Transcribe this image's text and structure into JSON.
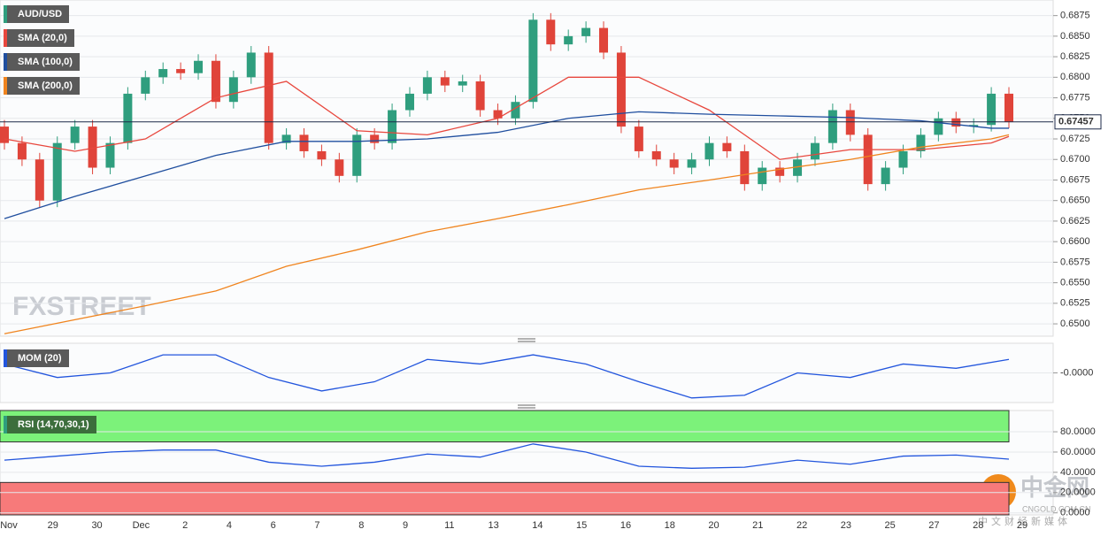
{
  "chart_data": [
    {
      "type": "candlestick",
      "title": "AUD/USD",
      "categories": [
        "Nov",
        "29",
        "30",
        "Dec",
        "2",
        "4",
        "6",
        "7",
        "8",
        "9",
        "11",
        "13",
        "14",
        "15",
        "16",
        "18",
        "20",
        "21",
        "22",
        "23",
        "25",
        "27",
        "28",
        "29"
      ],
      "open": [
        0.674,
        0.672,
        0.67,
        0.665,
        0.672,
        0.674,
        0.669,
        0.672,
        0.678,
        0.68,
        0.681,
        0.6805,
        0.682,
        0.677,
        0.68,
        0.683,
        0.672,
        0.673,
        0.671,
        0.67,
        0.668,
        0.673,
        0.672,
        0.676,
        0.678,
        0.68,
        0.679,
        0.6795,
        0.676,
        0.675,
        0.677,
        0.687,
        0.684,
        0.685,
        0.686,
        0.683,
        0.674,
        0.671,
        0.67,
        0.669,
        0.67,
        0.672,
        0.671,
        0.667,
        0.669,
        0.668,
        0.67,
        0.672,
        0.676,
        0.673,
        0.667,
        0.669,
        0.671,
        0.673,
        0.675,
        0.674,
        0.6742,
        0.678
      ],
      "high": [
        0.6748,
        0.6728,
        0.6708,
        0.6728,
        0.6748,
        0.6748,
        0.6728,
        0.6788,
        0.6808,
        0.6818,
        0.6818,
        0.6828,
        0.6828,
        0.6808,
        0.6838,
        0.6838,
        0.6738,
        0.6738,
        0.6718,
        0.6708,
        0.6738,
        0.6738,
        0.6768,
        0.6788,
        0.6808,
        0.6808,
        0.6803,
        0.6803,
        0.6768,
        0.6778,
        0.6878,
        0.6878,
        0.6858,
        0.6868,
        0.6868,
        0.6838,
        0.6748,
        0.6718,
        0.6708,
        0.6708,
        0.6728,
        0.6728,
        0.6718,
        0.6698,
        0.6698,
        0.6708,
        0.6728,
        0.6768,
        0.6768,
        0.6738,
        0.6698,
        0.6718,
        0.6738,
        0.6758,
        0.6758,
        0.675,
        0.6788,
        0.6788
      ],
      "low": [
        0.6712,
        0.6692,
        0.6642,
        0.6642,
        0.6712,
        0.6682,
        0.6682,
        0.6712,
        0.6772,
        0.6792,
        0.6797,
        0.6797,
        0.6762,
        0.6762,
        0.6792,
        0.6712,
        0.6712,
        0.6702,
        0.6692,
        0.6672,
        0.6672,
        0.6712,
        0.6712,
        0.6752,
        0.6772,
        0.6782,
        0.6782,
        0.6752,
        0.6742,
        0.6742,
        0.6762,
        0.6832,
        0.6832,
        0.6842,
        0.6822,
        0.6732,
        0.6702,
        0.6692,
        0.6682,
        0.6682,
        0.6692,
        0.6702,
        0.6662,
        0.6662,
        0.6672,
        0.6672,
        0.6692,
        0.6712,
        0.6722,
        0.6662,
        0.6662,
        0.6682,
        0.6702,
        0.6722,
        0.6732,
        0.6732,
        0.6734,
        0.6738
      ],
      "close": [
        0.672,
        0.67,
        0.665,
        0.672,
        0.674,
        0.669,
        0.672,
        0.678,
        0.68,
        0.681,
        0.6805,
        0.682,
        0.677,
        0.68,
        0.683,
        0.672,
        0.673,
        0.671,
        0.67,
        0.668,
        0.673,
        0.672,
        0.676,
        0.678,
        0.68,
        0.679,
        0.6795,
        0.676,
        0.675,
        0.677,
        0.687,
        0.684,
        0.685,
        0.686,
        0.683,
        0.674,
        0.671,
        0.67,
        0.669,
        0.67,
        0.672,
        0.671,
        0.667,
        0.669,
        0.668,
        0.67,
        0.672,
        0.676,
        0.673,
        0.667,
        0.669,
        0.671,
        0.673,
        0.675,
        0.674,
        0.6742,
        0.678,
        0.6746
      ],
      "up_color": "#2f9e7e",
      "down_color": "#e0443a",
      "series": [
        {
          "name": "SMA (20,0)",
          "color": "#e8473d",
          "x": [
            0,
            4,
            8,
            12,
            16,
            20,
            24,
            28,
            32,
            36,
            40,
            44,
            48,
            52,
            56,
            57
          ],
          "values": [
            0.6725,
            0.671,
            0.6725,
            0.6775,
            0.6795,
            0.6735,
            0.673,
            0.675,
            0.68,
            0.68,
            0.676,
            0.67,
            0.6712,
            0.6712,
            0.672,
            0.6728
          ]
        },
        {
          "name": "SMA (100,0)",
          "color": "#1f4e9e",
          "x": [
            0,
            4,
            8,
            12,
            16,
            20,
            24,
            28,
            32,
            36,
            40,
            44,
            48,
            52,
            56,
            57
          ],
          "values": [
            0.6628,
            0.6655,
            0.668,
            0.6705,
            0.6722,
            0.6722,
            0.6725,
            0.6733,
            0.675,
            0.6758,
            0.6755,
            0.6753,
            0.6751,
            0.6747,
            0.6738,
            0.6738
          ]
        },
        {
          "name": "SMA (200,0)",
          "color": "#f0841e",
          "x": [
            0,
            4,
            8,
            12,
            16,
            20,
            24,
            28,
            32,
            36,
            40,
            44,
            48,
            52,
            56,
            57
          ],
          "values": [
            0.6488,
            0.6505,
            0.6522,
            0.654,
            0.657,
            0.659,
            0.6612,
            0.6628,
            0.6645,
            0.6663,
            0.6675,
            0.6688,
            0.67,
            0.6715,
            0.6725,
            0.673
          ]
        }
      ],
      "last_price": 0.67457,
      "ylim": [
        0.6485,
        0.6894
      ],
      "yticks": [
        {
          "value": 0.65,
          "label": "0.6500"
        },
        {
          "value": 0.6525,
          "label": "0.6525"
        },
        {
          "value": 0.655,
          "label": "0.6550"
        },
        {
          "value": 0.6575,
          "label": "0.6575"
        },
        {
          "value": 0.66,
          "label": "0.6600"
        },
        {
          "value": 0.6625,
          "label": "0.6625"
        },
        {
          "value": 0.665,
          "label": "0.6650"
        },
        {
          "value": 0.6675,
          "label": "0.6675"
        },
        {
          "value": 0.67,
          "label": "0.6700"
        },
        {
          "value": 0.6725,
          "label": "0.6725"
        },
        {
          "value": 0.675,
          "label": "0.6750"
        },
        {
          "value": 0.6775,
          "label": "0.6775"
        },
        {
          "value": 0.68,
          "label": "0.6800"
        },
        {
          "value": 0.6825,
          "label": "0.6825"
        },
        {
          "value": 0.685,
          "label": "0.6850"
        },
        {
          "value": 0.6875,
          "label": "0.6875"
        }
      ],
      "grid": true
    },
    {
      "type": "line",
      "title": "MOM (20)",
      "color": "#2255dd",
      "x": [
        0,
        3,
        6,
        9,
        12,
        15,
        18,
        21,
        24,
        27,
        30,
        33,
        36,
        39,
        42,
        45,
        48,
        51,
        54,
        57
      ],
      "values": [
        0.0033,
        -0.0017,
        0,
        0.0067,
        0.0067,
        -0.0017,
        -0.0067,
        -0.0033,
        0.005,
        0.0033,
        0.0067,
        0.0033,
        -0.0033,
        -0.0093,
        -0.0083,
        0,
        -0.0017,
        0.0033,
        0.0017,
        0.005
      ],
      "ylim": [
        -0.011,
        0.011
      ],
      "yticks": [
        {
          "value": 0,
          "label": "-0.0000"
        }
      ],
      "grid": true
    },
    {
      "type": "line",
      "title": "RSI (14,70,30,1)",
      "color": "#2255dd",
      "x": [
        0,
        3,
        6,
        9,
        12,
        15,
        18,
        21,
        24,
        27,
        30,
        33,
        36,
        39,
        42,
        45,
        48,
        51,
        54,
        57
      ],
      "values": [
        52,
        56,
        60,
        62,
        62,
        50,
        46,
        50,
        58,
        55,
        68,
        60,
        46,
        44,
        45,
        52,
        48,
        56,
        57,
        53
      ],
      "overbought": 70,
      "oversold": 30,
      "ylim": [
        -2,
        101
      ],
      "yticks": [
        {
          "value": 0,
          "label": "0.0000"
        },
        {
          "value": 20,
          "label": "20.0000"
        },
        {
          "value": 40,
          "label": "40.0000"
        },
        {
          "value": 60,
          "label": "60.0000"
        },
        {
          "value": 80,
          "label": "80.0000"
        }
      ],
      "grid": true
    }
  ],
  "watermark": "FXSTREET",
  "logo": {
    "name": "中金网",
    "site": "CNGOLD.COM.CN",
    "tagline": "中文财经新媒体"
  }
}
